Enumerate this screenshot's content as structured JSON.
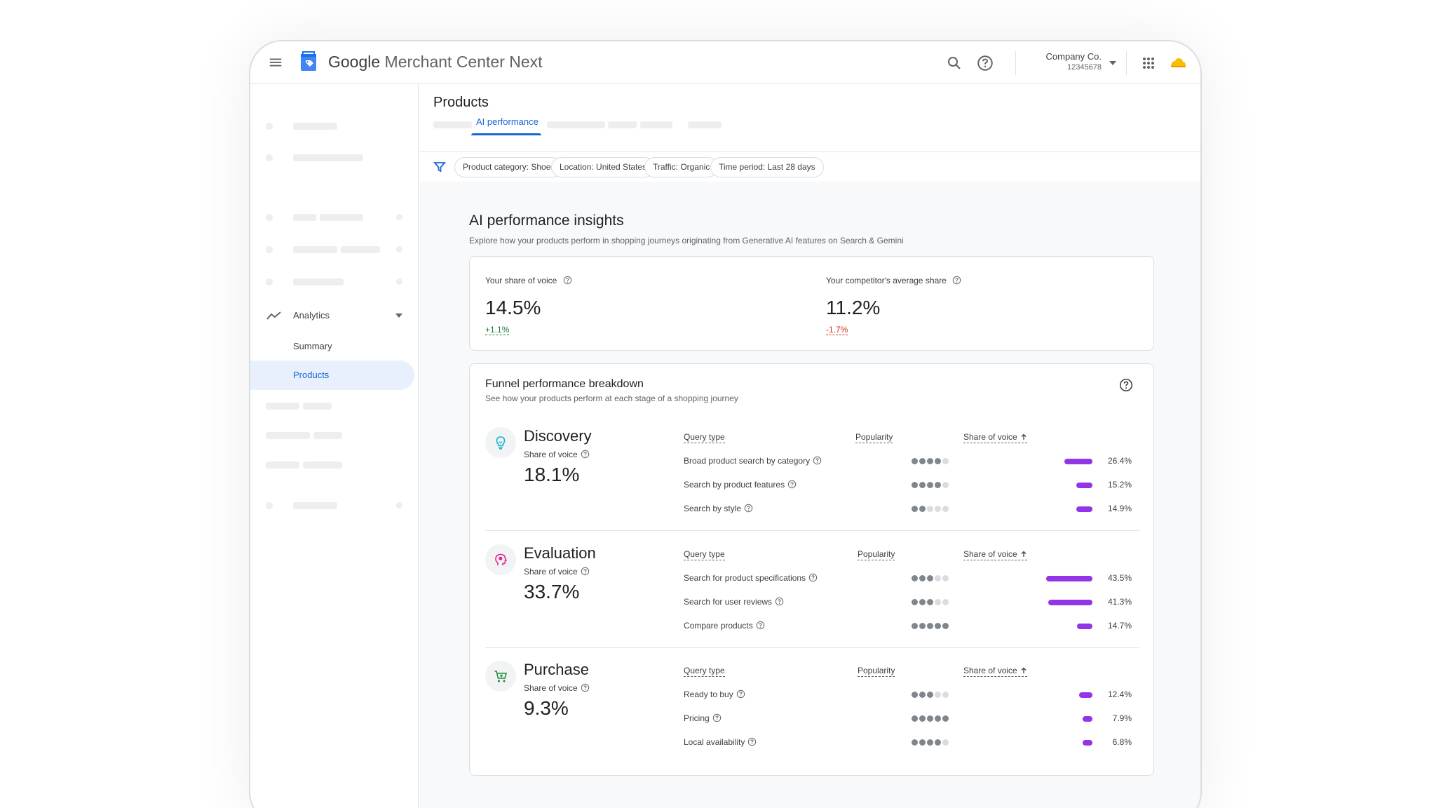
{
  "topbar": {
    "app_name_part1": "Google",
    "app_name_part2": " Merchant Center Next",
    "account_name": "Company Co.",
    "account_id": "12345678"
  },
  "sidebar": {
    "analytics_label": "Analytics",
    "summary_label": "Summary",
    "products_label": "Products"
  },
  "header": {
    "page_title": "Products",
    "active_tab": "AI performance"
  },
  "filters": [
    "Product category: Shoes",
    "Location: United States",
    "Traffic: Organic",
    "Time period: Last 28 days"
  ],
  "insights": {
    "title": "AI performance insights",
    "subtitle": "Explore how your products perform in shopping journeys originating from Generative AI features on Search & Gemini"
  },
  "share_card": {
    "yours": {
      "label": "Your share of voice",
      "value": "14.5%",
      "delta": "+1.1%"
    },
    "competitor": {
      "label": "Your competitor's average share",
      "value": "11.2%",
      "delta": "-1.7%"
    }
  },
  "funnel": {
    "title": "Funnel performance breakdown",
    "subtitle": "See how your products perform at each stage of a shopping journey",
    "col_query": "Query type",
    "col_popularity": "Popularity",
    "col_sov": "Share of voice",
    "sov_label": "Share of voice",
    "stages": [
      {
        "name": "Discovery",
        "icon": "lightbulb-icon",
        "icon_color": "#12b5cb",
        "sov": "18.1%",
        "rows": [
          {
            "query": "Broad product search by category",
            "popularity": 4,
            "sov": "26.4%",
            "sov_pct": 26.4
          },
          {
            "query": "Search by product features",
            "popularity": 4,
            "sov": "15.2%",
            "sov_pct": 15.2
          },
          {
            "query": "Search by style",
            "popularity": 2,
            "sov": "14.9%",
            "sov_pct": 14.9
          }
        ]
      },
      {
        "name": "Evaluation",
        "icon": "head-thinking-icon",
        "icon_color": "#e52592",
        "sov": "33.7%",
        "rows": [
          {
            "query": "Search for product specifications",
            "popularity": 3,
            "sov": "43.5%",
            "sov_pct": 43.5
          },
          {
            "query": "Search for user reviews",
            "popularity": 3,
            "sov": "41.3%",
            "sov_pct": 41.3
          },
          {
            "query": "Compare products",
            "popularity": 5,
            "sov": "14.7%",
            "sov_pct": 14.7
          }
        ]
      },
      {
        "name": "Purchase",
        "icon": "shopping-cart-icon",
        "icon_color": "#1e8e3e",
        "sov": "9.3%",
        "rows": [
          {
            "query": "Ready to buy",
            "popularity": 3,
            "sov": "12.4%",
            "sov_pct": 12.4
          },
          {
            "query": "Pricing",
            "popularity": 5,
            "sov": "7.9%",
            "sov_pct": 7.9
          },
          {
            "query": "Local availability",
            "popularity": 4,
            "sov": "6.8%",
            "sov_pct": 6.8
          }
        ]
      }
    ]
  },
  "colors": {
    "accent": "#1967d2",
    "bar": "#9334e6",
    "positive": "#188038",
    "negative": "#d93025"
  }
}
